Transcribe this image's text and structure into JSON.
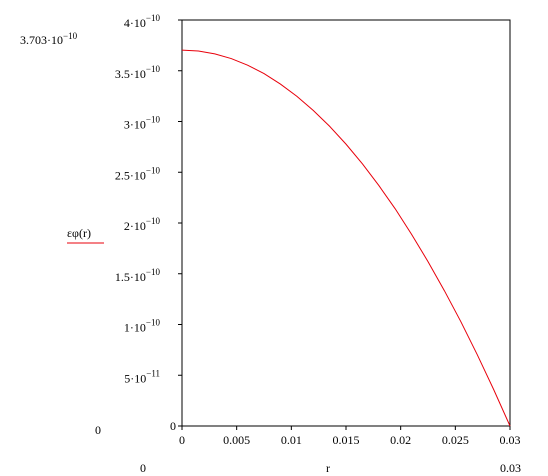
{
  "chart_data": {
    "type": "line",
    "xlabel": "r",
    "ylabel": "εφ(r)",
    "xlim": [
      0,
      0.03
    ],
    "ylim": [
      0,
      4e-10
    ],
    "grid": false,
    "x_ticks": [
      {
        "value": 0,
        "label": "0"
      },
      {
        "value": 0.005,
        "label": "0.005"
      },
      {
        "value": 0.01,
        "label": "0.01"
      },
      {
        "value": 0.015,
        "label": "0.015"
      },
      {
        "value": 0.02,
        "label": "0.02"
      },
      {
        "value": 0.025,
        "label": "0.025"
      },
      {
        "value": 0.03,
        "label": "0.03"
      }
    ],
    "y_ticks": [
      {
        "value": 0,
        "mantissa": "0",
        "exponent": ""
      },
      {
        "value": 5e-11,
        "mantissa": "5·10",
        "exponent": "−11"
      },
      {
        "value": 1e-10,
        "mantissa": "1·10",
        "exponent": "−10"
      },
      {
        "value": 1.5e-10,
        "mantissa": "1.5·10",
        "exponent": "−10"
      },
      {
        "value": 2e-10,
        "mantissa": "2·10",
        "exponent": "−10"
      },
      {
        "value": 2.5e-10,
        "mantissa": "2.5·10",
        "exponent": "−10"
      },
      {
        "value": 3e-10,
        "mantissa": "3·10",
        "exponent": "−10"
      },
      {
        "value": 3.5e-10,
        "mantissa": "3.5·10",
        "exponent": "−10"
      },
      {
        "value": 4e-10,
        "mantissa": "4·10",
        "exponent": "−10"
      }
    ],
    "range_labels": {
      "y_max_mantissa": "3.703·10",
      "y_max_exponent": "−10",
      "y_min": "0",
      "x_min": "0",
      "x_max": "0.03"
    },
    "series": [
      {
        "color": "#e8000b",
        "x": [
          0,
          0.0015,
          0.003,
          0.0045,
          0.006,
          0.0075,
          0.009,
          0.0105,
          0.012,
          0.0135,
          0.015,
          0.0165,
          0.018,
          0.0195,
          0.021,
          0.0225,
          0.024,
          0.0255,
          0.027,
          0.0285,
          0.03
        ],
        "y": [
          3.703e-10,
          3.694e-10,
          3.666e-10,
          3.62e-10,
          3.555e-10,
          3.472e-10,
          3.369e-10,
          3.249e-10,
          3.11e-10,
          2.953e-10,
          2.777e-10,
          2.583e-10,
          2.37e-10,
          2.14e-10,
          1.888e-10,
          1.62e-10,
          1.333e-10,
          1.029e-10,
          7.036e-11,
          3.61e-11,
          0
        ]
      }
    ]
  }
}
